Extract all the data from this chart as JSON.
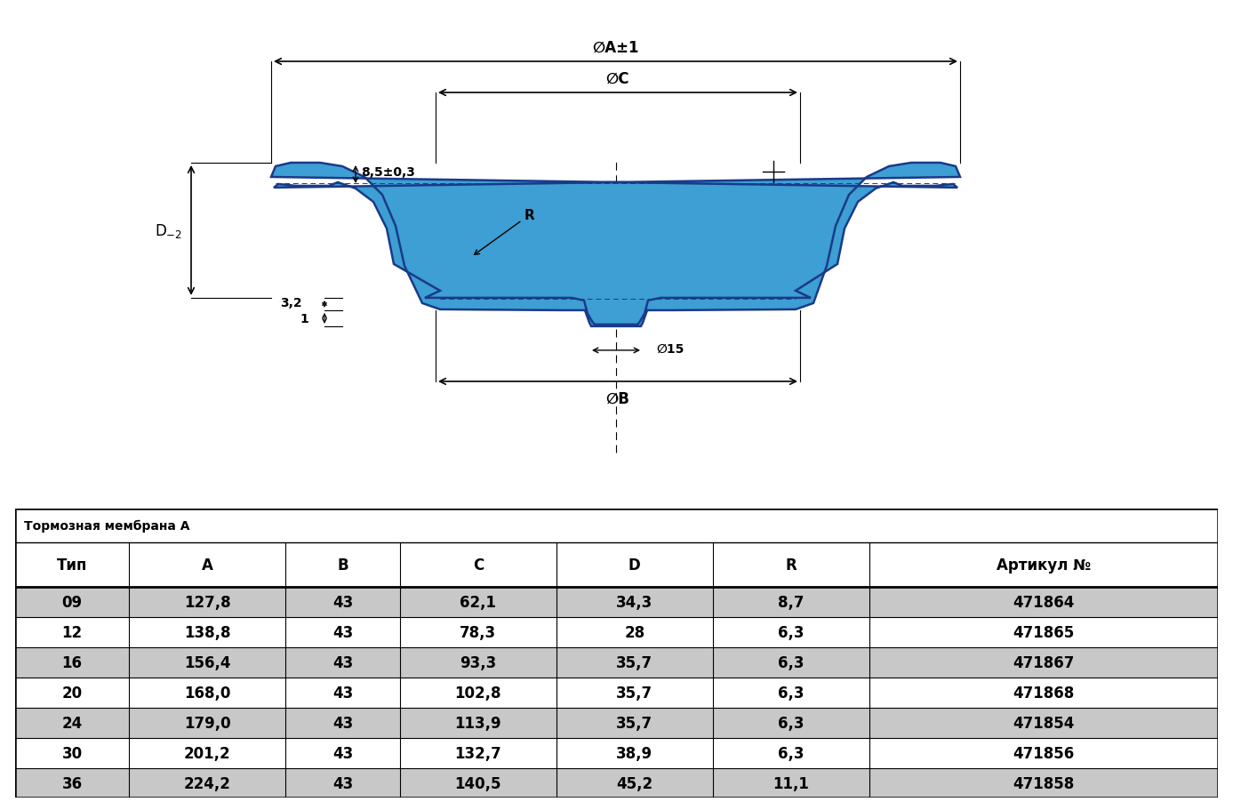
{
  "title": "Тормозная мембрана А",
  "table_headers": [
    "Тип",
    "A",
    "B",
    "C",
    "D",
    "R",
    "Артикул №"
  ],
  "table_rows": [
    [
      "09",
      "127,8",
      "43",
      "62,1",
      "34,3",
      "8,7",
      "471864"
    ],
    [
      "12",
      "138,8",
      "43",
      "78,3",
      "28",
      "6,3",
      "471865"
    ],
    [
      "16",
      "156,4",
      "43",
      "93,3",
      "35,7",
      "6,3",
      "471867"
    ],
    [
      "20",
      "168,0",
      "43",
      "102,8",
      "35,7",
      "6,3",
      "471868"
    ],
    [
      "24",
      "179,0",
      "43",
      "113,9",
      "35,7",
      "6,3",
      "471854"
    ],
    [
      "30",
      "201,2",
      "43",
      "132,7",
      "38,9",
      "6,3",
      "471856"
    ],
    [
      "36",
      "224,2",
      "43",
      "140,5",
      "45,2",
      "11,1",
      "471858"
    ]
  ],
  "row_colors": [
    "#c8c8c8",
    "#ffffff",
    "#c8c8c8",
    "#ffffff",
    "#c8c8c8",
    "#ffffff",
    "#c8c8c8"
  ],
  "membrane_color": "#3d9fd3",
  "membrane_edge_color": "#1a3a8a",
  "bg_color": "#ffffff",
  "annotation_85": "8,5±0,3",
  "annotation_32": "3,2",
  "annotation_1": "1",
  "annotation_R": "R",
  "annotation_15": "∅15",
  "annotation_A": "∅A±1",
  "annotation_B": "∅B",
  "annotation_C": "∅C",
  "annotation_D2": "D"
}
